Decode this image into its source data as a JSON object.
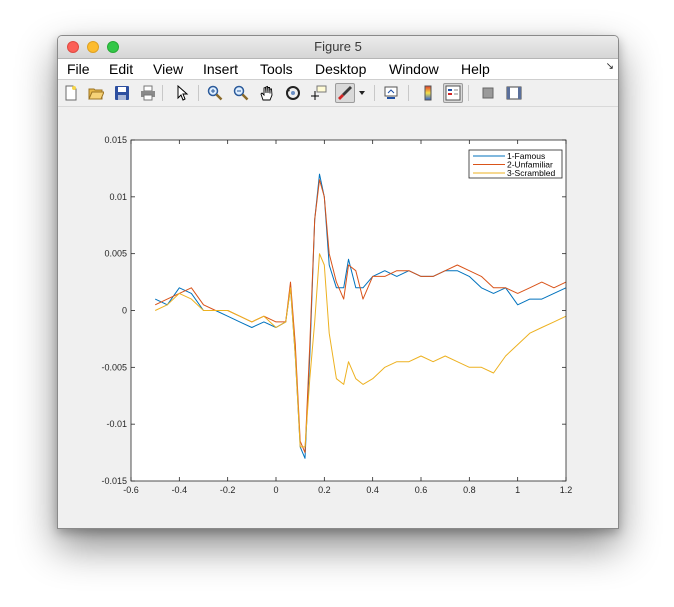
{
  "window": {
    "title": "Figure 5"
  },
  "menu": [
    "File",
    "Edit",
    "View",
    "Insert",
    "Tools",
    "Desktop",
    "Window",
    "Help"
  ],
  "toolbar": {
    "icons": [
      "new-figure-icon",
      "open-file-icon",
      "save-icon",
      "print-icon",
      "edit-plot-arrow-icon",
      "zoom-in-icon",
      "zoom-out-icon",
      "pan-hand-icon",
      "rotate-3d-icon",
      "data-cursor-icon",
      "brush-icon",
      "brush-dropdown-icon",
      "link-plot-icon",
      "colorbar-icon",
      "legend-icon",
      "hide-plot-tools-icon",
      "show-plot-tools-icon"
    ]
  },
  "chart_data": {
    "type": "line",
    "title": "",
    "xlabel": "",
    "ylabel": "",
    "xlim": [
      -0.6,
      1.2
    ],
    "ylim": [
      -0.015,
      0.015
    ],
    "x_ticks": [
      "-0.6",
      "-0.4",
      "-0.2",
      "0",
      "0.2",
      "0.4",
      "0.6",
      "0.8",
      "1",
      "1.2"
    ],
    "y_ticks": [
      "-0.015",
      "-0.01",
      "-0.005",
      "0",
      "0.005",
      "0.01",
      "0.015"
    ],
    "legend_position": "top-right",
    "grid": false,
    "series": [
      {
        "name": "1-Famous",
        "color": "#0072bd",
        "x": [
          -0.5,
          -0.45,
          -0.4,
          -0.35,
          -0.3,
          -0.25,
          -0.2,
          -0.15,
          -0.1,
          -0.05,
          0.0,
          0.04,
          0.06,
          0.08,
          0.1,
          0.12,
          0.14,
          0.16,
          0.18,
          0.2,
          0.22,
          0.25,
          0.28,
          0.3,
          0.33,
          0.36,
          0.4,
          0.45,
          0.5,
          0.55,
          0.6,
          0.65,
          0.7,
          0.75,
          0.8,
          0.85,
          0.9,
          0.95,
          1.0,
          1.05,
          1.1,
          1.15,
          1.2
        ],
        "y": [
          0.001,
          0.0005,
          0.002,
          0.0015,
          0.0,
          0.0,
          -0.0005,
          -0.001,
          -0.0015,
          -0.001,
          -0.0015,
          -0.001,
          0.002,
          -0.004,
          -0.012,
          -0.013,
          -0.004,
          0.008,
          0.012,
          0.01,
          0.004,
          0.002,
          0.002,
          0.0045,
          0.002,
          0.002,
          0.003,
          0.0035,
          0.003,
          0.0035,
          0.003,
          0.003,
          0.0035,
          0.0035,
          0.003,
          0.002,
          0.0015,
          0.002,
          0.0005,
          0.001,
          0.001,
          0.0015,
          0.002
        ]
      },
      {
        "name": "2-Unfamiliar",
        "color": "#d95319",
        "x": [
          -0.5,
          -0.45,
          -0.4,
          -0.35,
          -0.3,
          -0.25,
          -0.2,
          -0.15,
          -0.1,
          -0.05,
          0.0,
          0.04,
          0.06,
          0.08,
          0.1,
          0.12,
          0.14,
          0.16,
          0.18,
          0.2,
          0.22,
          0.25,
          0.28,
          0.3,
          0.33,
          0.36,
          0.4,
          0.45,
          0.5,
          0.55,
          0.6,
          0.65,
          0.7,
          0.75,
          0.8,
          0.85,
          0.9,
          0.95,
          1.0,
          1.05,
          1.1,
          1.15,
          1.2
        ],
        "y": [
          0.0005,
          0.001,
          0.0015,
          0.002,
          0.0005,
          0.0,
          0.0,
          -0.0005,
          -0.001,
          -0.0005,
          -0.001,
          -0.001,
          0.0025,
          -0.003,
          -0.0115,
          -0.0125,
          -0.003,
          0.008,
          0.0115,
          0.01,
          0.005,
          0.0025,
          0.001,
          0.004,
          0.0035,
          0.001,
          0.003,
          0.003,
          0.0035,
          0.0035,
          0.003,
          0.003,
          0.0035,
          0.004,
          0.0035,
          0.003,
          0.002,
          0.002,
          0.0015,
          0.002,
          0.0025,
          0.002,
          0.0025
        ]
      },
      {
        "name": "3-Scrambled",
        "color": "#edb120",
        "x": [
          -0.5,
          -0.45,
          -0.4,
          -0.35,
          -0.3,
          -0.25,
          -0.2,
          -0.15,
          -0.1,
          -0.05,
          0.0,
          0.04,
          0.06,
          0.08,
          0.1,
          0.12,
          0.14,
          0.16,
          0.18,
          0.2,
          0.22,
          0.25,
          0.28,
          0.3,
          0.33,
          0.36,
          0.4,
          0.45,
          0.5,
          0.55,
          0.6,
          0.65,
          0.7,
          0.75,
          0.8,
          0.85,
          0.9,
          0.95,
          1.0,
          1.05,
          1.1,
          1.15,
          1.2
        ],
        "y": [
          0.0,
          0.0005,
          0.0015,
          0.001,
          0.0,
          0.0,
          0.0,
          -0.0005,
          -0.001,
          -0.0005,
          -0.0015,
          -0.001,
          0.002,
          -0.004,
          -0.012,
          -0.012,
          -0.006,
          -0.001,
          0.005,
          0.004,
          -0.002,
          -0.006,
          -0.0065,
          -0.0045,
          -0.006,
          -0.0065,
          -0.006,
          -0.005,
          -0.0045,
          -0.0045,
          -0.004,
          -0.0045,
          -0.004,
          -0.0045,
          -0.005,
          -0.005,
          -0.0055,
          -0.004,
          -0.003,
          -0.002,
          -0.0015,
          -0.001,
          -0.0005
        ]
      }
    ]
  }
}
